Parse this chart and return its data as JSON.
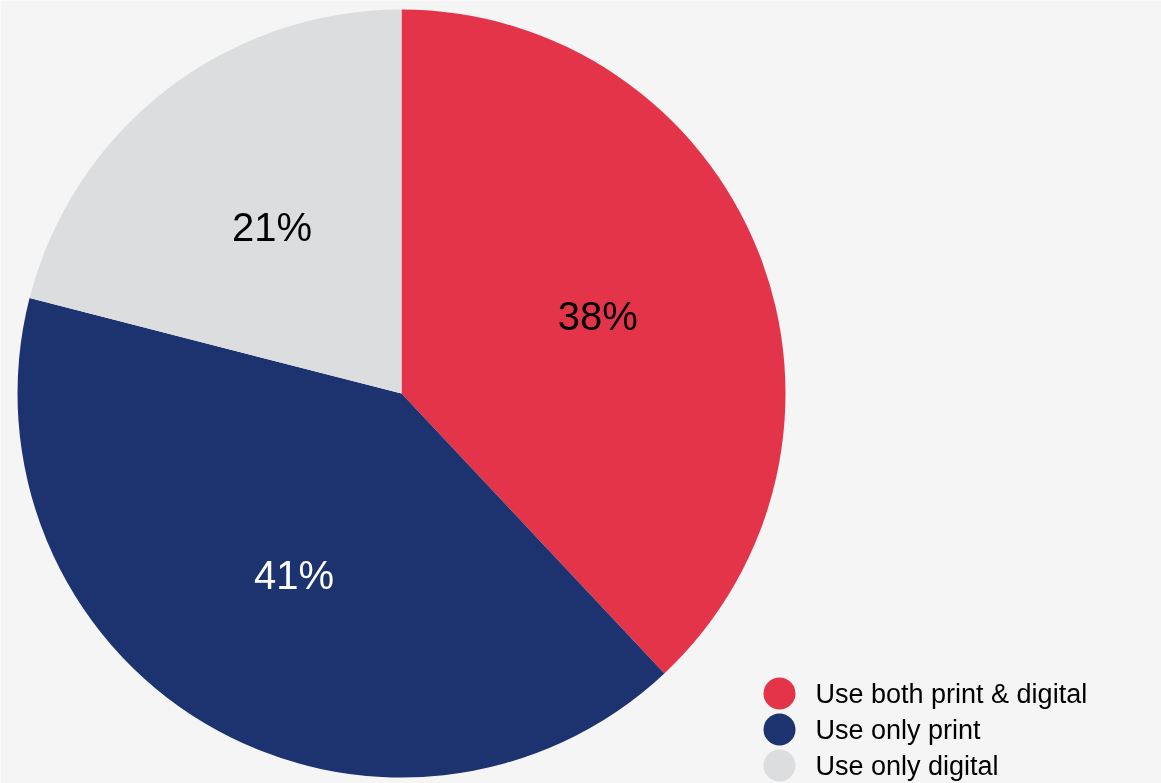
{
  "chart_data": {
    "type": "pie",
    "categories": [
      "Use both print & digital",
      "Use only print",
      "Use only digital"
    ],
    "values": [
      38,
      41,
      21
    ],
    "colors": [
      "#e3344a",
      "#1c3370",
      "#dcdddf"
    ],
    "value_labels": [
      "38%",
      "41%",
      "21%"
    ],
    "legend": "bottom right"
  }
}
